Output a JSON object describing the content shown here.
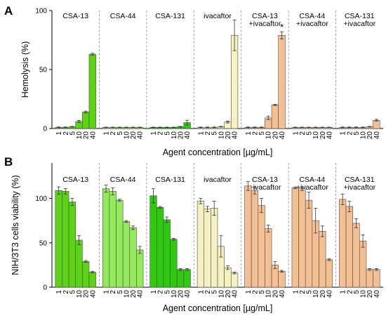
{
  "concentrations": [
    "1",
    "2",
    "5",
    "10",
    "20",
    "40"
  ],
  "colors": {
    "CSA-13": "#5dd316",
    "CSA-44": "#93ea5a",
    "CSA-131": "#2fc90f",
    "ivacaftor": "#f5f1c0",
    "combination": "#f4bf93",
    "edge": "#4a4a4a"
  },
  "chart_data": [
    {
      "panel": "A",
      "type": "bar",
      "ylabel": "Hemolysis (%)",
      "xlabel": "Agent concentration [µg/mL]",
      "ylim": [
        0,
        100
      ],
      "yticks": [
        0,
        50,
        100
      ],
      "grid": false,
      "groups": [
        {
          "name": "CSA-13",
          "label": [
            "CSA-13"
          ],
          "color_key": "CSA-13",
          "values": [
            1,
            1,
            1.5,
            6,
            14,
            63
          ],
          "errors": [
            0.3,
            0.3,
            0.3,
            0.8,
            0.8,
            0.8
          ]
        },
        {
          "name": "CSA-44",
          "label": [
            "CSA-44"
          ],
          "color_key": "CSA-44",
          "values": [
            1,
            1,
            1,
            1,
            1,
            1
          ],
          "errors": [
            0.2,
            0.2,
            0.2,
            0.2,
            0.2,
            0.2
          ]
        },
        {
          "name": "CSA-131",
          "label": [
            "CSA-131"
          ],
          "color_key": "CSA-131",
          "values": [
            1,
            1,
            1,
            1,
            1.5,
            5
          ],
          "errors": [
            0.2,
            0.2,
            0.2,
            0.2,
            0.3,
            2
          ]
        },
        {
          "name": "ivacaftor",
          "label": [
            "ivacaftor"
          ],
          "color_key": "ivacaftor",
          "values": [
            1,
            1,
            1,
            1.5,
            5.5,
            79
          ],
          "errors": [
            0.3,
            0.3,
            0.3,
            0.3,
            0.8,
            13
          ]
        },
        {
          "name": "CSA-13 +ivacaftor",
          "label": [
            "CSA-13",
            "+ivacaftor"
          ],
          "color_key": "combination",
          "values": [
            1,
            1,
            1,
            9,
            20,
            79
          ],
          "errors": [
            0.3,
            0.3,
            0.3,
            1.5,
            0.5,
            3
          ],
          "annotations": [
            {
              "index": 5,
              "text": "*"
            }
          ]
        },
        {
          "name": "CSA-44 +ivacaftor",
          "label": [
            "CSA-44",
            "+ivacaftor"
          ],
          "color_key": "combination",
          "values": [
            1,
            1,
            1,
            1,
            1,
            1
          ],
          "errors": [
            0.2,
            0.2,
            0.2,
            0.2,
            0.2,
            0.2
          ]
        },
        {
          "name": "CSA-131 +ivacaftor",
          "label": [
            "CSA-131",
            "+ivacaftor"
          ],
          "color_key": "combination",
          "values": [
            1,
            1,
            1,
            1,
            1.5,
            7
          ],
          "errors": [
            0.3,
            0.3,
            0.3,
            0.3,
            0.3,
            0.8
          ]
        }
      ]
    },
    {
      "panel": "B",
      "type": "bar",
      "ylabel": "NIH/3T3 cells viability (%)",
      "xlabel": "Agent concentration [µg/mL]",
      "ylim": [
        0,
        140
      ],
      "yticks": [
        0,
        50,
        100
      ],
      "grid": false,
      "groups": [
        {
          "name": "CSA-13",
          "label": [
            "CSA-13"
          ],
          "color_key": "CSA-13",
          "values": [
            109,
            108,
            96,
            53,
            29,
            17
          ],
          "errors": [
            4,
            3,
            4,
            5,
            1,
            1
          ]
        },
        {
          "name": "CSA-44",
          "label": [
            "CSA-44"
          ],
          "color_key": "CSA-44",
          "values": [
            111,
            108,
            98,
            74,
            67,
            42
          ],
          "errors": [
            4,
            4,
            1,
            1,
            2,
            4
          ]
        },
        {
          "name": "CSA-131",
          "label": [
            "CSA-131"
          ],
          "color_key": "CSA-131",
          "values": [
            103,
            90,
            76,
            54,
            20,
            20
          ],
          "errors": [
            8,
            1,
            3,
            1,
            1,
            1
          ]
        },
        {
          "name": "ivacaftor",
          "label": [
            "ivacaftor"
          ],
          "color_key": "ivacaftor",
          "values": [
            97,
            88,
            89,
            46,
            22,
            16
          ],
          "errors": [
            3,
            3,
            8,
            12,
            2,
            1
          ]
        },
        {
          "name": "CSA-13 +ivacaftor",
          "label": [
            "CSA-13",
            "+ivacaftor"
          ],
          "color_key": "combination",
          "values": [
            114,
            109,
            92,
            66,
            25,
            18
          ],
          "errors": [
            5,
            4,
            8,
            4,
            4,
            1
          ]
        },
        {
          "name": "CSA-44 +ivacaftor",
          "label": [
            "CSA-44",
            "+ivacaftor"
          ],
          "color_key": "combination",
          "values": [
            112,
            111,
            98,
            75,
            63,
            31
          ],
          "errors": [
            1,
            2,
            9,
            14,
            6,
            1
          ]
        },
        {
          "name": "CSA-131 +ivacaftor",
          "label": [
            "CSA-131",
            "+ivacaftor"
          ],
          "color_key": "combination",
          "values": [
            99,
            91,
            72,
            52,
            20,
            20
          ],
          "errors": [
            6,
            6,
            5,
            7,
            1,
            1
          ]
        }
      ]
    }
  ]
}
